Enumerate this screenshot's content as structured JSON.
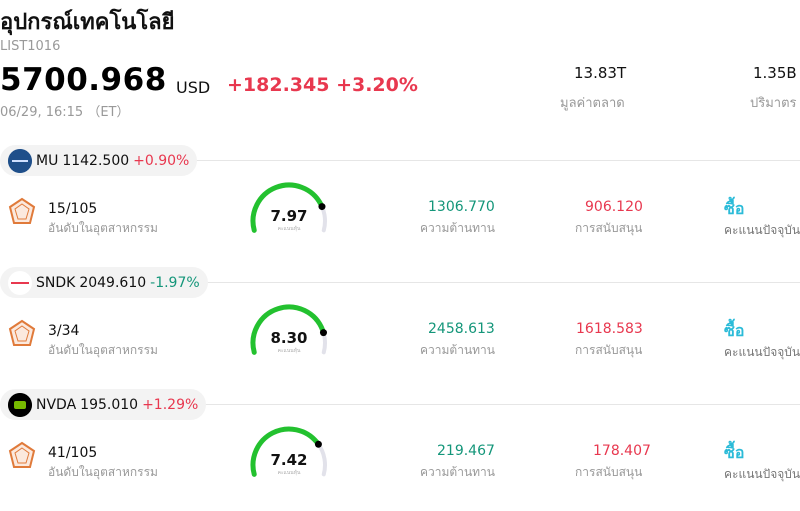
{
  "header": {
    "title": "อุปกรณ์เทคโนโลยี",
    "code": "LIST1016",
    "price": "5700.968",
    "currency": "USD",
    "change": "+182.345 +3.20%",
    "time": "06/29, 16:15 （ET）"
  },
  "metrics": {
    "market_cap_value": "13.83T",
    "market_cap_label": "มูลค่าตลาด",
    "volume_value": "1.35B",
    "volume_label": "ปริมาตร"
  },
  "labels": {
    "rank": "อันดับในอุตสาหกรรม",
    "gauge_sub": "คะแนนหุ้น",
    "resistance": "ความต้านทาน",
    "support": "การสนับสนุน",
    "rating": "คะแนนปัจจุบัน"
  },
  "stocks": [
    {
      "ticker": "MU",
      "price": "1142.500",
      "pct": "+0.90%",
      "direction": "up",
      "rank": "15/105",
      "score": "7.97",
      "score_fraction": 0.797,
      "resistance": "1306.770",
      "support": "906.120",
      "rating": "ซื้อ",
      "icon": "micron-logo-icon"
    },
    {
      "ticker": "SNDK",
      "price": "2049.610",
      "pct": "-1.97%",
      "direction": "down",
      "rank": "3/34",
      "score": "8.30",
      "score_fraction": 0.83,
      "resistance": "2458.613",
      "support": "1618.583",
      "rating": "ซื้อ",
      "icon": "sandisk-logo-icon"
    },
    {
      "ticker": "NVDA",
      "price": "195.010",
      "pct": "+1.29%",
      "direction": "up",
      "rank": "41/105",
      "score": "7.42",
      "score_fraction": 0.742,
      "resistance": "219.467",
      "support": "178.407",
      "rating": "ซื้อ",
      "icon": "nvidia-logo-icon"
    }
  ],
  "colors": {
    "up": "#e8384f",
    "down": "#14967a",
    "rating": "#2bbbd8",
    "gauge_start": "#23c12f",
    "gauge_track": "#e2e2ea"
  }
}
